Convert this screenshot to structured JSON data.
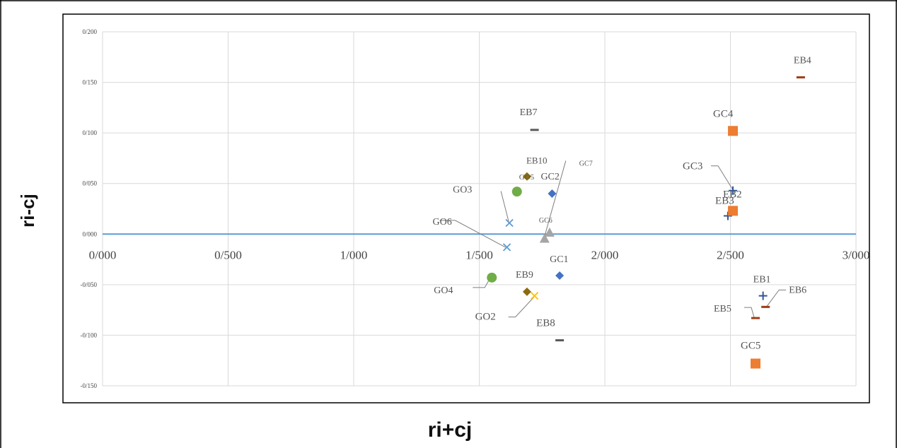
{
  "chart_data": {
    "type": "scatter",
    "title": "",
    "xlabel": "ri+cj",
    "ylabel": "ri-cj",
    "xlim": [
      0,
      3
    ],
    "ylim": [
      -0.15,
      0.2
    ],
    "grid": true,
    "legend": "none",
    "x_ticks": [
      "0/000",
      "0/500",
      "1/000",
      "1/500",
      "2/000",
      "2/500",
      "3/000"
    ],
    "y_ticks": [
      "0/200",
      "0/150",
      "0/100",
      "0/050",
      "0/000",
      "-0/050",
      "-0/100",
      "-0/150"
    ],
    "points": [
      {
        "label": "EB4",
        "x": 2.78,
        "y": 0.155,
        "marker": "dash",
        "color": "#9e3d15"
      },
      {
        "label": "GC4",
        "x": 2.51,
        "y": 0.102,
        "marker": "square",
        "color": "#ed7d31"
      },
      {
        "label": "EB7",
        "x": 1.72,
        "y": 0.103,
        "marker": "dash",
        "color": "#595959"
      },
      {
        "label": "EB10",
        "x": 1.69,
        "y": 0.057,
        "marker": "diamond",
        "color": "#8c6b0f"
      },
      {
        "label": "GO5",
        "x": 1.65,
        "y": 0.042,
        "marker": "circle",
        "color": "#70ad47"
      },
      {
        "label": "GC2",
        "x": 1.79,
        "y": 0.04,
        "marker": "diamond",
        "color": "#4472c4"
      },
      {
        "label": "GO3",
        "x": 1.62,
        "y": 0.011,
        "marker": "x",
        "color": "#5b9bd5"
      },
      {
        "label": "GC6",
        "x": 1.78,
        "y": 0.001,
        "marker": "triangle",
        "color": "#a5a5a5"
      },
      {
        "label": "GC7",
        "x": 1.76,
        "y": -0.005,
        "marker": "triangle",
        "color": "#a5a5a5"
      },
      {
        "label": "GO6",
        "x": 1.61,
        "y": -0.013,
        "marker": "x",
        "color": "#5b9bd5"
      },
      {
        "label": "GO4",
        "x": 1.55,
        "y": -0.043,
        "marker": "circle",
        "color": "#70ad47"
      },
      {
        "label": "GC1",
        "x": 1.82,
        "y": -0.041,
        "marker": "diamond",
        "color": "#4472c4"
      },
      {
        "label": "EB9",
        "x": 1.69,
        "y": -0.057,
        "marker": "diamond",
        "color": "#8c6b0f"
      },
      {
        "label": "GO2",
        "x": 1.72,
        "y": -0.061,
        "marker": "x",
        "color": "#ffc000"
      },
      {
        "label": "EB8",
        "x": 1.82,
        "y": -0.105,
        "marker": "dash",
        "color": "#595959"
      },
      {
        "label": "GC3",
        "x": 2.51,
        "y": 0.043,
        "marker": "plus",
        "color": "#2f5597"
      },
      {
        "label": "EB2",
        "x": 2.49,
        "y": 0.018,
        "marker": "plus",
        "color": "#2f5597"
      },
      {
        "label": "EB3",
        "x": 2.51,
        "y": 0.023,
        "marker": "square",
        "color": "#ed7d31"
      },
      {
        "label": "EB1",
        "x": 2.63,
        "y": -0.061,
        "marker": "plus",
        "color": "#2f5597"
      },
      {
        "label": "EB5",
        "x": 2.6,
        "y": -0.083,
        "marker": "dash",
        "color": "#9e3d15"
      },
      {
        "label": "EB6",
        "x": 2.64,
        "y": -0.072,
        "marker": "dash",
        "color": "#9e3d15"
      },
      {
        "label": "GC5",
        "x": 2.6,
        "y": -0.128,
        "marker": "square",
        "color": "#ed7d31"
      }
    ]
  },
  "colors": {
    "baseline": "#5b9bd5",
    "grid": "#d9d9d9",
    "frame": "#000000"
  }
}
